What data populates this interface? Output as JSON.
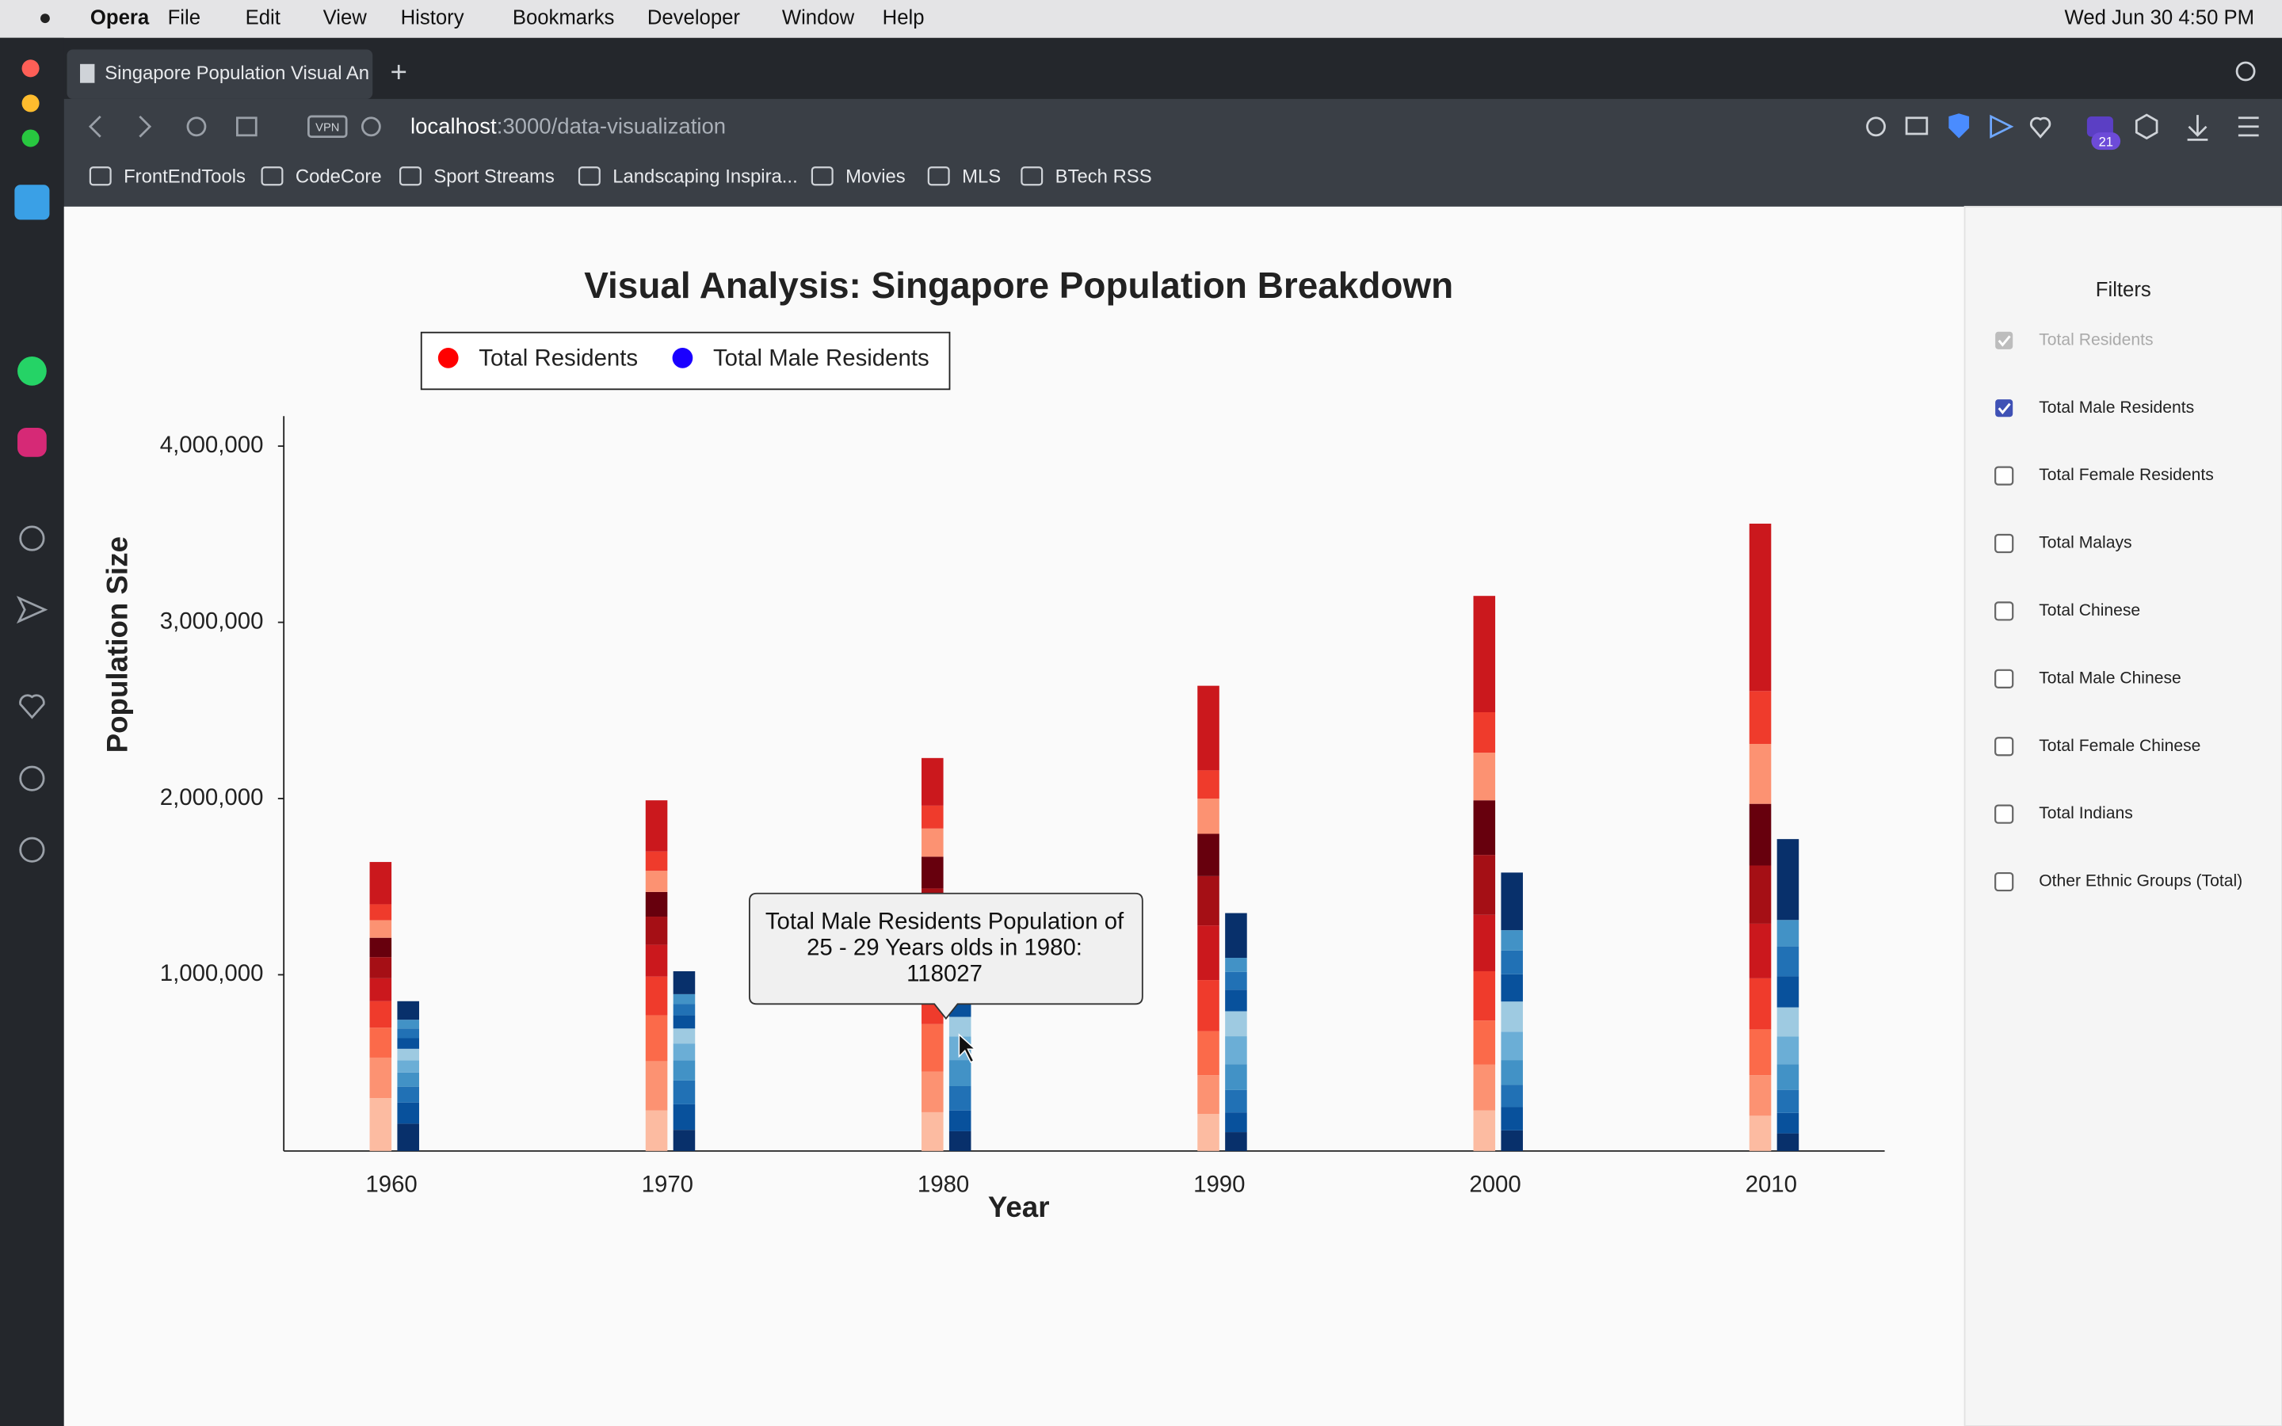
{
  "browser": {
    "app": "Opera",
    "menu": [
      "File",
      "Edit",
      "View",
      "History",
      "Bookmarks",
      "Developer",
      "Window",
      "Help"
    ],
    "clock": "Wed Jun 30  4:50 PM",
    "tab_title": "Singapore Population Visual An",
    "vpn": "VPN",
    "url_host": "localhost",
    "url_path": ":3000/data-visualization",
    "badge": "21",
    "bookmarks": [
      "FrontEndTools",
      "CodeCore",
      "Sport Streams",
      "Landscaping Inspira...",
      "Movies",
      "MLS",
      "BTech RSS"
    ]
  },
  "chart_data": {
    "type": "stacked_bar",
    "title": "Visual Analysis: Singapore Population Breakdown",
    "x_label": "Year",
    "y_label": "Population Size",
    "categories": [
      "1960",
      "1970",
      "1980",
      "1990",
      "2000",
      "2010"
    ],
    "series": [
      {
        "name": "Total Residents",
        "color": "#ff0000",
        "segment_colors": [
          "#fcbba1",
          "#fc9272",
          "#fb6a4a",
          "#ef3b2c",
          "#cb181d",
          "#a50f15",
          "#67000d",
          "#fc9272",
          "#ef3b2c",
          "#cb181d"
        ],
        "values": [
          [
            300000,
            230000,
            170000,
            150000,
            130000,
            120000,
            110000,
            100000,
            90000,
            240000
          ],
          [
            230000,
            280000,
            260000,
            220000,
            180000,
            160000,
            140000,
            120000,
            110000,
            290000
          ],
          [
            220000,
            230000,
            270000,
            290000,
            260000,
            220000,
            180000,
            160000,
            130000,
            270000
          ],
          [
            210000,
            220000,
            250000,
            290000,
            310000,
            280000,
            240000,
            200000,
            160000,
            480000
          ],
          [
            230000,
            260000,
            250000,
            280000,
            320000,
            340000,
            310000,
            270000,
            230000,
            660000
          ],
          [
            200000,
            230000,
            260000,
            290000,
            310000,
            330000,
            350000,
            340000,
            300000,
            950000
          ]
        ]
      },
      {
        "name": "Total Male Residents",
        "color": "#1a00ff",
        "segment_colors": [
          "#08306b",
          "#08519c",
          "#2171b5",
          "#4292c6",
          "#6baed6",
          "#9ecae1",
          "#08519c",
          "#2171b5",
          "#4292c6",
          "#08306b"
        ],
        "values": [
          [
            155000,
            120000,
            90000,
            80000,
            70000,
            65000,
            60000,
            55000,
            50000,
            105000
          ],
          [
            120000,
            145000,
            135000,
            115000,
            95000,
            85000,
            75000,
            65000,
            55000,
            130000
          ],
          [
            112000,
            118027,
            138000,
            148000,
            133000,
            112000,
            92000,
            80000,
            64000,
            133000
          ],
          [
            107000,
            112000,
            127000,
            147000,
            158000,
            142000,
            122000,
            101000,
            80000,
            254000
          ],
          [
            117000,
            132000,
            126000,
            141000,
            161000,
            171000,
            155000,
            135000,
            115000,
            327000
          ],
          [
            100000,
            116000,
            131000,
            146000,
            156000,
            166000,
            176000,
            170000,
            150000,
            459000
          ]
        ]
      }
    ],
    "ylim": [
      0,
      4170000
    ],
    "yticks": [
      {
        "value": 1000000,
        "label": "1,000,000"
      },
      {
        "value": 2000000,
        "label": "2,000,000"
      },
      {
        "value": 3000000,
        "label": "3,000,000"
      },
      {
        "value": 4000000,
        "label": "4,000,000"
      }
    ],
    "tooltip": "Total Male Residents Population of|25 - 29 Years olds in 1980:|118027"
  },
  "filters": {
    "title": "Filters",
    "items": [
      {
        "label": "Total Residents",
        "checked": true,
        "disabled": true
      },
      {
        "label": "Total Male Residents",
        "checked": true,
        "disabled": false
      },
      {
        "label": "Total Female Residents",
        "checked": false,
        "disabled": false
      },
      {
        "label": "Total Malays",
        "checked": false,
        "disabled": false
      },
      {
        "label": "Total Chinese",
        "checked": false,
        "disabled": false
      },
      {
        "label": "Total Male Chinese",
        "checked": false,
        "disabled": false
      },
      {
        "label": "Total Female Chinese",
        "checked": false,
        "disabled": false
      },
      {
        "label": "Total Indians",
        "checked": false,
        "disabled": false
      },
      {
        "label": "Other Ethnic Groups (Total)",
        "checked": false,
        "disabled": false
      }
    ]
  }
}
